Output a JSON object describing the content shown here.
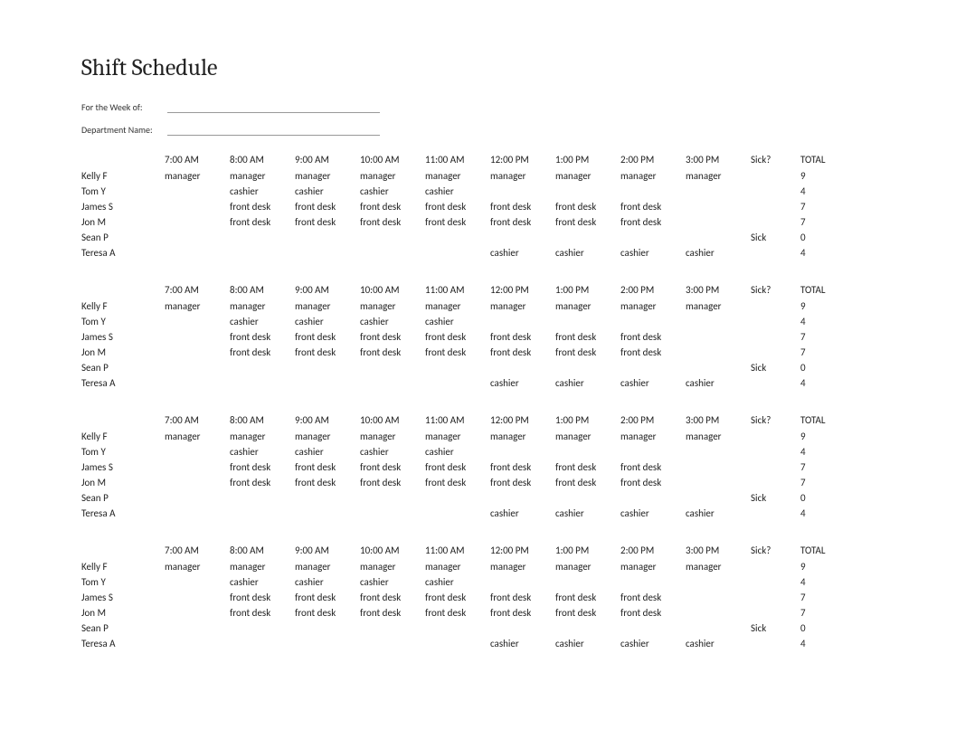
{
  "title": "Shift Schedule",
  "meta": {
    "week_label": "For the Week of:",
    "dept_label": "Department Name:"
  },
  "columns": {
    "hours": [
      "7:00 AM",
      "8:00 AM",
      "9:00 AM",
      "10:00 AM",
      "11:00 AM",
      "12:00 PM",
      "1:00 PM",
      "2:00 PM",
      "3:00 PM"
    ],
    "sick_header": "Sick?",
    "total_header": "TOTAL"
  },
  "block_count": 4,
  "employees": [
    {
      "name": "Kelly F",
      "cells": [
        "manager",
        "manager",
        "manager",
        "manager",
        "manager",
        "manager",
        "manager",
        "manager",
        "manager"
      ],
      "sick": "",
      "total": "9"
    },
    {
      "name": "Tom Y",
      "cells": [
        "",
        "cashier",
        "cashier",
        "cashier",
        "cashier",
        "",
        "",
        "",
        ""
      ],
      "sick": "",
      "total": "4"
    },
    {
      "name": "James S",
      "cells": [
        "",
        "front desk",
        "front desk",
        "front desk",
        "front desk",
        "front desk",
        "front desk",
        "front desk",
        ""
      ],
      "sick": "",
      "total": "7"
    },
    {
      "name": "Jon M",
      "cells": [
        "",
        "front desk",
        "front desk",
        "front desk",
        "front desk",
        "front desk",
        "front desk",
        "front desk",
        ""
      ],
      "sick": "",
      "total": "7"
    },
    {
      "name": "Sean P",
      "cells": [
        "",
        "",
        "",
        "",
        "",
        "",
        "",
        "",
        ""
      ],
      "sick": "Sick",
      "total": "0"
    },
    {
      "name": "Teresa A",
      "cells": [
        "",
        "",
        "",
        "",
        "",
        "cashier",
        "cashier",
        "cashier",
        "cashier"
      ],
      "sick": "",
      "total": "4"
    }
  ],
  "style": {
    "background_color": "#ffffff",
    "text_color": "#1a1a1a",
    "title_fontfamily": "Cambria",
    "title_fontsize": 26,
    "body_fontfamily": "Calibri",
    "table_fontsize": 11,
    "meta_fontsize": 10,
    "meta_line_color": "#999999",
    "col_widths": {
      "name": 92,
      "hour": 72,
      "sick": 55,
      "total": 55
    }
  }
}
